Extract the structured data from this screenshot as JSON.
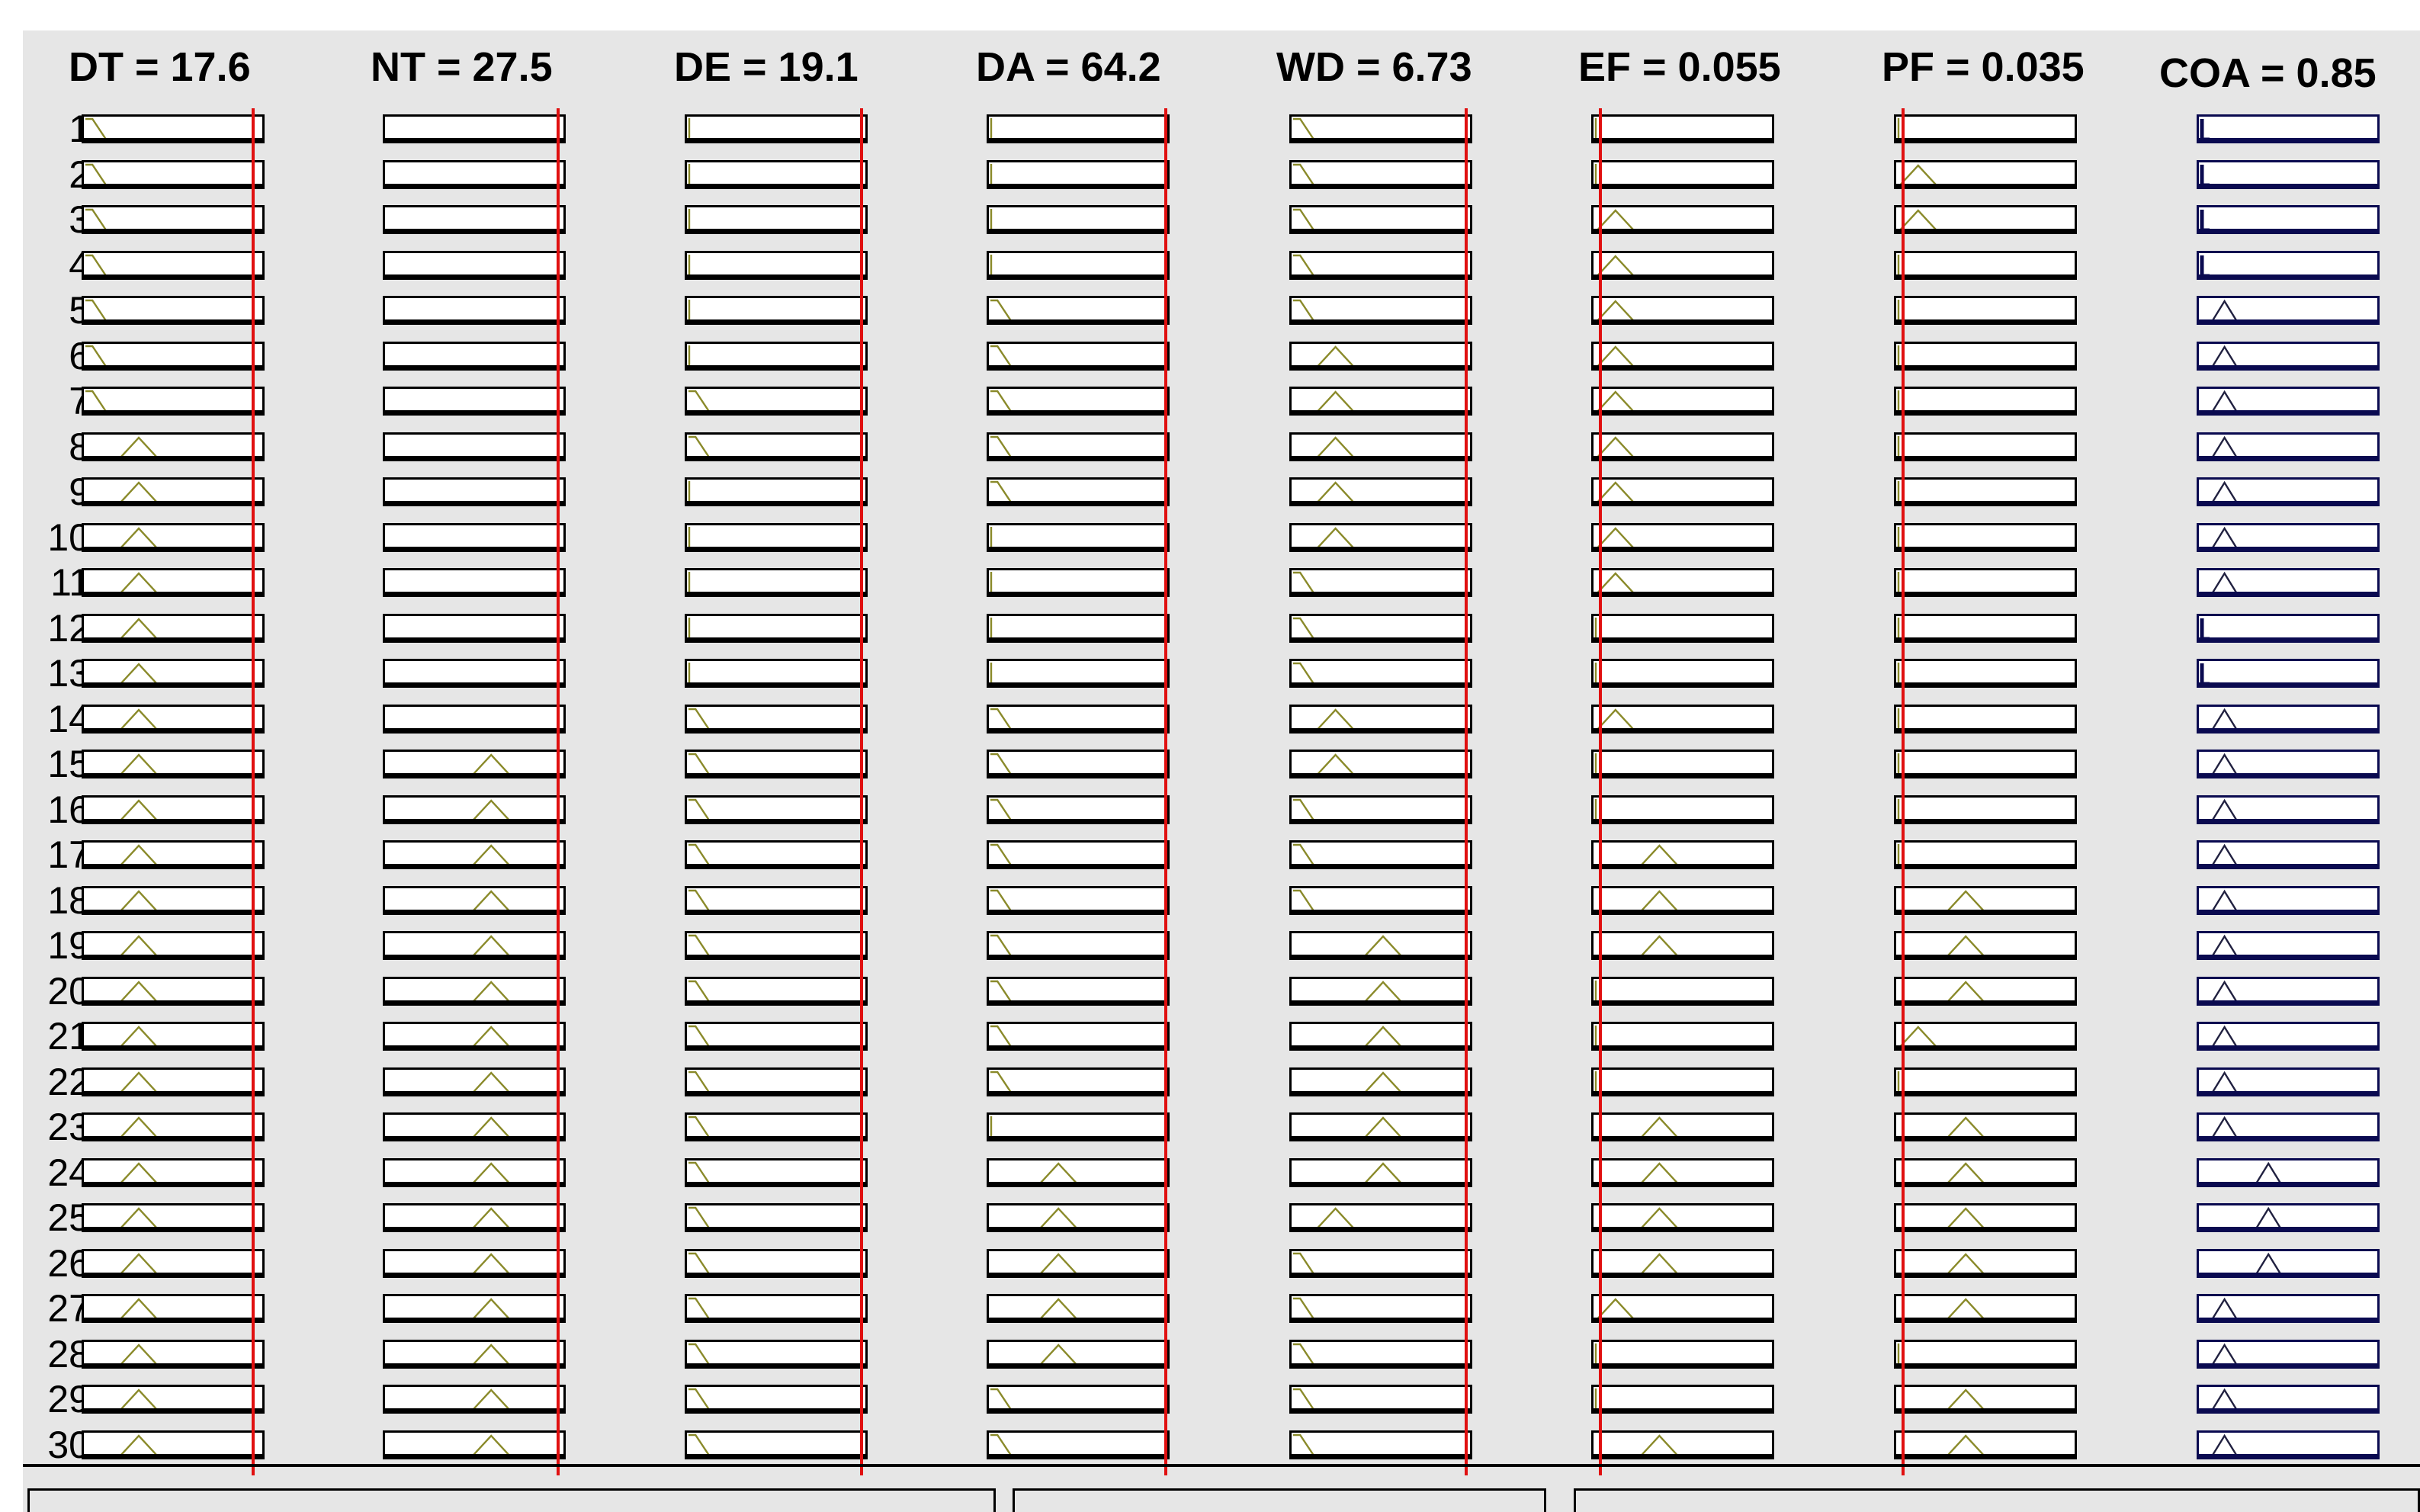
{
  "columns": [
    {
      "name": "DT",
      "label": "DT = 17.6",
      "value": 17.6,
      "indicator_fraction": 0.93,
      "rows": [
        [
          "tl",
          0.08
        ],
        [
          "tl",
          0.08
        ],
        [
          "tl",
          0.08
        ],
        [
          "tl",
          0.08
        ],
        [
          "tl",
          0.08
        ],
        [
          "tl",
          0.08
        ],
        [
          "tl",
          0.08
        ],
        [
          "tri",
          0.3
        ],
        [
          "tri",
          0.3
        ],
        [
          "tri",
          0.3
        ],
        [
          "tri",
          0.3
        ],
        [
          "tri",
          0.3
        ],
        [
          "tri",
          0.3
        ],
        [
          "tri",
          0.3
        ],
        [
          "tri",
          0.3
        ],
        [
          "tri",
          0.3
        ],
        [
          "tri",
          0.3
        ],
        [
          "tri",
          0.3
        ],
        [
          "tri",
          0.3
        ],
        [
          "tri",
          0.3
        ],
        [
          "tri",
          0.3
        ],
        [
          "tri",
          0.3
        ],
        [
          "tri",
          0.3
        ],
        [
          "tri",
          0.3
        ],
        [
          "tri",
          0.3
        ],
        [
          "tri",
          0.3
        ],
        [
          "tri",
          0.3
        ],
        [
          "tri",
          0.3
        ],
        [
          "tri",
          0.3
        ],
        [
          "tri",
          0.3
        ]
      ]
    },
    {
      "name": "NT",
      "label": "NT = 27.5",
      "value": 27.5,
      "indicator_fraction": 0.95,
      "rows": [
        [
          "none",
          0
        ],
        [
          "none",
          0
        ],
        [
          "none",
          0
        ],
        [
          "none",
          0
        ],
        [
          "none",
          0
        ],
        [
          "none",
          0
        ],
        [
          "none",
          0
        ],
        [
          "none",
          0
        ],
        [
          "none",
          0
        ],
        [
          "none",
          0
        ],
        [
          "none",
          0
        ],
        [
          "none",
          0
        ],
        [
          "none",
          0
        ],
        [
          "none",
          0
        ],
        [
          "tri",
          0.58
        ],
        [
          "tri",
          0.58
        ],
        [
          "tri",
          0.58
        ],
        [
          "tri",
          0.58
        ],
        [
          "tri",
          0.58
        ],
        [
          "tri",
          0.58
        ],
        [
          "tri",
          0.58
        ],
        [
          "tri",
          0.58
        ],
        [
          "tri",
          0.58
        ],
        [
          "tri",
          0.58
        ],
        [
          "tri",
          0.58
        ],
        [
          "tri",
          0.58
        ],
        [
          "tri",
          0.58
        ],
        [
          "tri",
          0.58
        ],
        [
          "tri",
          0.58
        ],
        [
          "tri",
          0.58
        ]
      ]
    },
    {
      "name": "DE",
      "label": "DE = 19.1",
      "value": 19.1,
      "indicator_fraction": 0.96,
      "rows": [
        [
          "bar",
          0.02
        ],
        [
          "bar",
          0.02
        ],
        [
          "bar",
          0.02
        ],
        [
          "bar",
          0.02
        ],
        [
          "bar",
          0.02
        ],
        [
          "bar",
          0.02
        ],
        [
          "tl",
          0.08
        ],
        [
          "tl",
          0.08
        ],
        [
          "bar",
          0.02
        ],
        [
          "bar",
          0.02
        ],
        [
          "bar",
          0.02
        ],
        [
          "bar",
          0.02
        ],
        [
          "bar",
          0.02
        ],
        [
          "tl",
          0.08
        ],
        [
          "tl",
          0.08
        ],
        [
          "tl",
          0.08
        ],
        [
          "tl",
          0.08
        ],
        [
          "tl",
          0.08
        ],
        [
          "tl",
          0.08
        ],
        [
          "tl",
          0.08
        ],
        [
          "tl",
          0.08
        ],
        [
          "tl",
          0.08
        ],
        [
          "tl",
          0.08
        ],
        [
          "tl",
          0.08
        ],
        [
          "tl",
          0.08
        ],
        [
          "tl",
          0.08
        ],
        [
          "tl",
          0.08
        ],
        [
          "tl",
          0.08
        ],
        [
          "tl",
          0.08
        ],
        [
          "tl",
          0.08
        ]
      ]
    },
    {
      "name": "DA",
      "label": "DA = 64.2",
      "value": 64.2,
      "indicator_fraction": 0.97,
      "rows": [
        [
          "bar",
          0.02
        ],
        [
          "bar",
          0.02
        ],
        [
          "bar",
          0.02
        ],
        [
          "bar",
          0.02
        ],
        [
          "tl",
          0.08
        ],
        [
          "tl",
          0.08
        ],
        [
          "tl",
          0.08
        ],
        [
          "tl",
          0.08
        ],
        [
          "tl",
          0.08
        ],
        [
          "bar",
          0.02
        ],
        [
          "bar",
          0.02
        ],
        [
          "bar",
          0.02
        ],
        [
          "bar",
          0.02
        ],
        [
          "tl",
          0.08
        ],
        [
          "tl",
          0.08
        ],
        [
          "tl",
          0.08
        ],
        [
          "tl",
          0.08
        ],
        [
          "tl",
          0.08
        ],
        [
          "tl",
          0.08
        ],
        [
          "tl",
          0.08
        ],
        [
          "tl",
          0.08
        ],
        [
          "tl",
          0.08
        ],
        [
          "bar",
          0.02
        ],
        [
          "tri",
          0.38
        ],
        [
          "tri",
          0.38
        ],
        [
          "tri",
          0.38
        ],
        [
          "tri",
          0.38
        ],
        [
          "tri",
          0.38
        ],
        [
          "tl",
          0.08
        ],
        [
          "tl",
          0.08
        ]
      ]
    },
    {
      "name": "WD",
      "label": "WD = 6.73",
      "value": 6.73,
      "indicator_fraction": 0.96,
      "rows": [
        [
          "tl",
          0.08
        ],
        [
          "tl",
          0.08
        ],
        [
          "tl",
          0.08
        ],
        [
          "tl",
          0.08
        ],
        [
          "tl",
          0.08
        ],
        [
          "tri",
          0.24
        ],
        [
          "tri",
          0.24
        ],
        [
          "tri",
          0.24
        ],
        [
          "tri",
          0.24
        ],
        [
          "tri",
          0.24
        ],
        [
          "tl",
          0.08
        ],
        [
          "tl",
          0.08
        ],
        [
          "tl",
          0.08
        ],
        [
          "tri",
          0.24
        ],
        [
          "tri",
          0.24
        ],
        [
          "tl",
          0.08
        ],
        [
          "tl",
          0.08
        ],
        [
          "tl",
          0.08
        ],
        [
          "tri",
          0.5
        ],
        [
          "tri",
          0.5
        ],
        [
          "tri",
          0.5
        ],
        [
          "tri",
          0.5
        ],
        [
          "tri",
          0.5
        ],
        [
          "tri",
          0.5
        ],
        [
          "tri",
          0.24
        ],
        [
          "tl",
          0.08
        ],
        [
          "tl",
          0.08
        ],
        [
          "tl",
          0.08
        ],
        [
          "tl",
          0.08
        ],
        [
          "tl",
          0.08
        ]
      ]
    },
    {
      "name": "EF",
      "label": "EF = 0.055",
      "value": 0.055,
      "indicator_fraction": 0.04,
      "rows": [
        [
          "bar",
          0.02
        ],
        [
          "bar",
          0.02
        ],
        [
          "tri",
          0.12
        ],
        [
          "tri",
          0.12
        ],
        [
          "tri",
          0.12
        ],
        [
          "tri",
          0.12
        ],
        [
          "tri",
          0.12
        ],
        [
          "tri",
          0.12
        ],
        [
          "tri",
          0.12
        ],
        [
          "tri",
          0.12
        ],
        [
          "tri",
          0.12
        ],
        [
          "bar",
          0.02
        ],
        [
          "bar",
          0.02
        ],
        [
          "tri",
          0.12
        ],
        [
          "bar",
          0.02
        ],
        [
          "bar",
          0.02
        ],
        [
          "tri",
          0.36
        ],
        [
          "tri",
          0.36
        ],
        [
          "tri",
          0.36
        ],
        [
          "bar",
          0.02
        ],
        [
          "bar",
          0.02
        ],
        [
          "bar",
          0.02
        ],
        [
          "tri",
          0.36
        ],
        [
          "tri",
          0.36
        ],
        [
          "tri",
          0.36
        ],
        [
          "tri",
          0.36
        ],
        [
          "tri",
          0.12
        ],
        [
          "bar",
          0.02
        ],
        [
          "bar",
          0.02
        ],
        [
          "tri",
          0.36
        ]
      ]
    },
    {
      "name": "PF",
      "label": "PF = 0.035",
      "value": 0.035,
      "indicator_fraction": 0.04,
      "rows": [
        [
          "bar",
          0.02
        ],
        [
          "tri",
          0.12
        ],
        [
          "tri",
          0.12
        ],
        [
          "bar",
          0.02
        ],
        [
          "bar",
          0.02
        ],
        [
          "bar",
          0.02
        ],
        [
          "bar",
          0.02
        ],
        [
          "bar",
          0.02
        ],
        [
          "bar",
          0.02
        ],
        [
          "bar",
          0.02
        ],
        [
          "bar",
          0.02
        ],
        [
          "bar",
          0.02
        ],
        [
          "bar",
          0.02
        ],
        [
          "bar",
          0.02
        ],
        [
          "bar",
          0.02
        ],
        [
          "bar",
          0.02
        ],
        [
          "bar",
          0.02
        ],
        [
          "tri",
          0.38
        ],
        [
          "tri",
          0.38
        ],
        [
          "tri",
          0.38
        ],
        [
          "tri",
          0.12
        ],
        [
          "bar",
          0.02
        ],
        [
          "tri",
          0.38
        ],
        [
          "tri",
          0.38
        ],
        [
          "tri",
          0.38
        ],
        [
          "tri",
          0.38
        ],
        [
          "tri",
          0.38
        ],
        [
          "bar",
          0.02
        ],
        [
          "tri",
          0.38
        ],
        [
          "tri",
          0.38
        ]
      ]
    },
    {
      "name": "COA",
      "label": "COA = 0.85",
      "value": 0.85,
      "indicator_fraction": null,
      "rows": [
        [
          "nav",
          0.03
        ],
        [
          "nav",
          0.03
        ],
        [
          "nav",
          0.03
        ],
        [
          "nav",
          0.03
        ],
        [
          "navtri",
          0.14
        ],
        [
          "navtri",
          0.14
        ],
        [
          "navtri",
          0.14
        ],
        [
          "navtri",
          0.14
        ],
        [
          "navtri",
          0.14
        ],
        [
          "navtri",
          0.14
        ],
        [
          "navtri",
          0.14
        ],
        [
          "nav",
          0.03
        ],
        [
          "nav",
          0.03
        ],
        [
          "navtri",
          0.14
        ],
        [
          "navtri",
          0.14
        ],
        [
          "navtri",
          0.14
        ],
        [
          "navtri",
          0.14
        ],
        [
          "navtri",
          0.14
        ],
        [
          "navtri",
          0.14
        ],
        [
          "navtri",
          0.14
        ],
        [
          "navtri",
          0.14
        ],
        [
          "navtri",
          0.14
        ],
        [
          "navtri",
          0.14
        ],
        [
          "navtri",
          0.38
        ],
        [
          "navtri",
          0.38
        ],
        [
          "navtri",
          0.38
        ],
        [
          "navtri",
          0.14
        ],
        [
          "navtri",
          0.14
        ],
        [
          "navtri",
          0.14
        ],
        [
          "navtri",
          0.14
        ]
      ]
    }
  ],
  "row_labels": [
    "1",
    "2",
    "3",
    "4",
    "5",
    "6",
    "7",
    "8",
    "9",
    "10",
    "11",
    "12",
    "13",
    "14",
    "15",
    "16",
    "17",
    "18",
    "19",
    "20",
    "21",
    "22",
    "23",
    "24",
    "25",
    "26",
    "27",
    "28",
    "29",
    "30"
  ],
  "colors": {
    "indicator": "#e01010",
    "mf_stroke": "#8a8a2a",
    "panel_bg": "#e6e6e6"
  }
}
